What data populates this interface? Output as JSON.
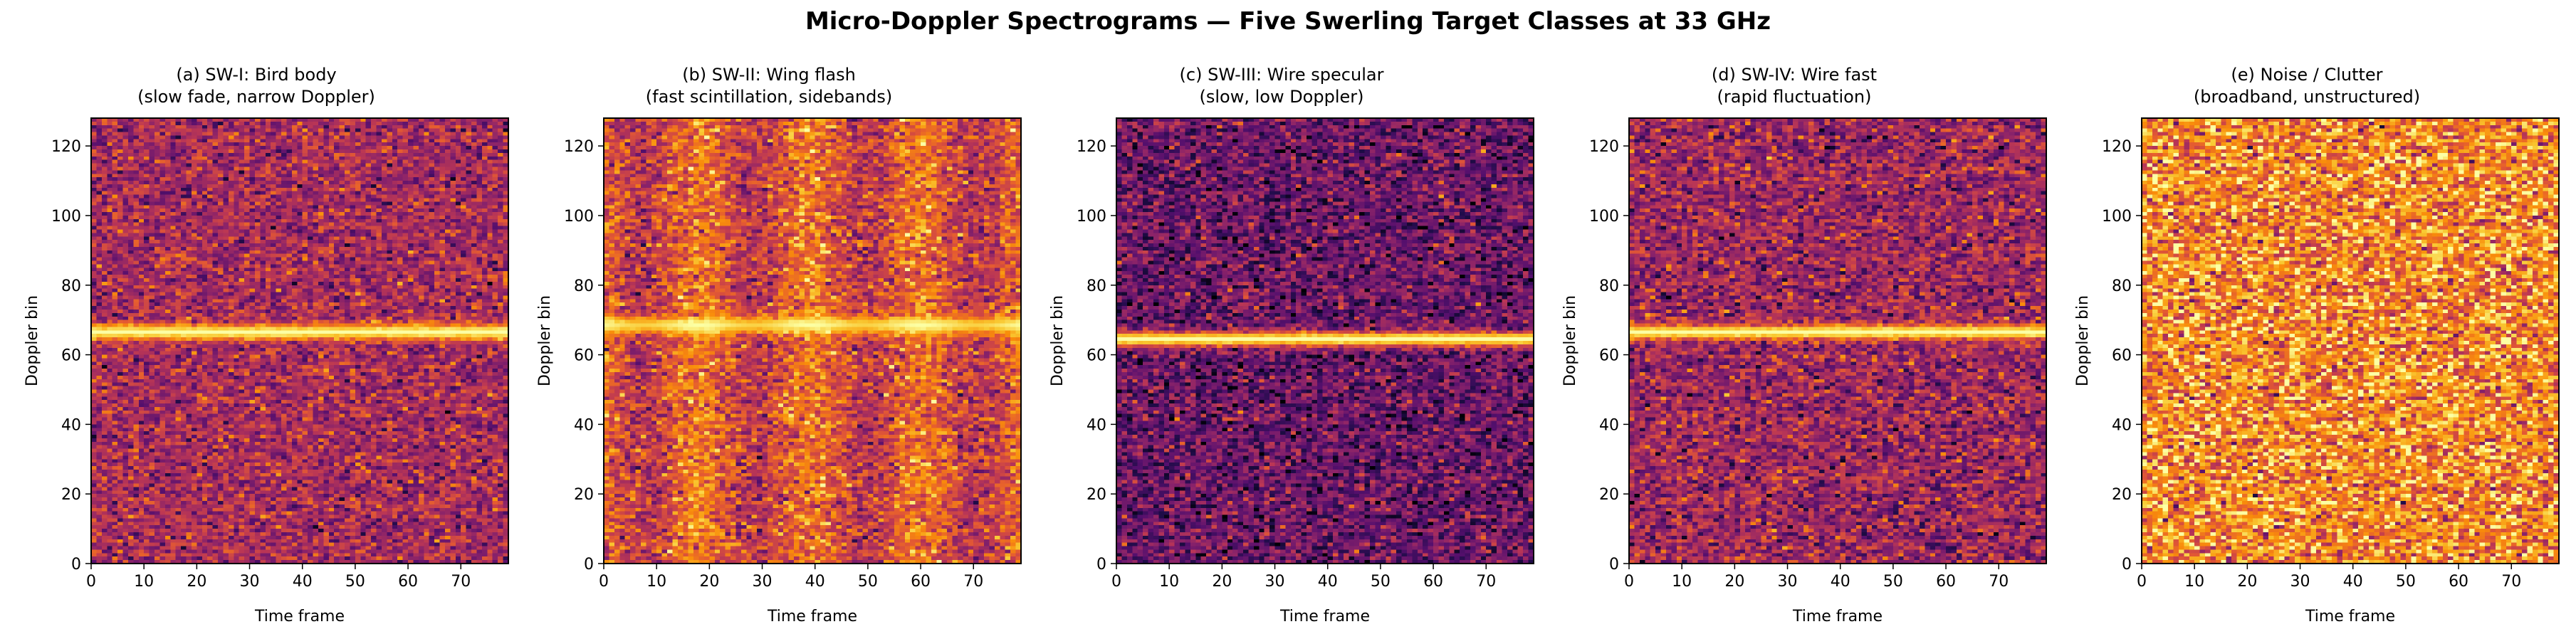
{
  "figure": {
    "title": "Micro-Doppler Spectrograms — Five Swerling Target Classes at 33 GHz"
  },
  "colormap": "inferno",
  "chart_data": [
    {
      "type": "heatmap",
      "title_line1": "(a) SW-I: Bird body",
      "title_line2": "(slow fade, narrow Doppler)",
      "xlabel": "Time frame",
      "ylabel": "Doppler bin",
      "xlim": [
        0,
        79
      ],
      "ylim": [
        0,
        128
      ],
      "xticks": [
        0,
        10,
        20,
        30,
        40,
        50,
        60,
        70
      ],
      "yticks": [
        0,
        20,
        40,
        60,
        80,
        100,
        120
      ],
      "grid": false,
      "background_level": 0.45,
      "noise_amplitude": 0.12,
      "line_center_bin": 66.5,
      "line_width_bins": 1.6,
      "line_level": 1.0,
      "temporal_modulation": "none"
    },
    {
      "type": "heatmap",
      "title_line1": "(b) SW-II: Wing flash",
      "title_line2": "(fast scintillation, sidebands)",
      "xlabel": "Time frame",
      "ylabel": "Doppler bin",
      "xlim": [
        0,
        79
      ],
      "ylim": [
        0,
        128
      ],
      "xticks": [
        0,
        10,
        20,
        30,
        40,
        50,
        60,
        70
      ],
      "yticks": [
        0,
        20,
        40,
        60,
        80,
        100,
        120
      ],
      "grid": false,
      "background_level": 0.55,
      "noise_amplitude": 0.12,
      "line_center_bin": 68.5,
      "line_width_bins": 1.8,
      "line_level": 1.0,
      "temporal_modulation": "periodic flashes, period ≈ 21 frames"
    },
    {
      "type": "heatmap",
      "title_line1": "(c) SW-III: Wire specular",
      "title_line2": "(slow, low Doppler)",
      "xlabel": "Time frame",
      "ylabel": "Doppler bin",
      "xlim": [
        0,
        79
      ],
      "ylim": [
        0,
        128
      ],
      "xticks": [
        0,
        10,
        20,
        30,
        40,
        50,
        60,
        70
      ],
      "yticks": [
        0,
        20,
        40,
        60,
        80,
        100,
        120
      ],
      "grid": false,
      "background_level": 0.3,
      "noise_amplitude": 0.13,
      "line_center_bin": 64.5,
      "line_width_bins": 1.5,
      "line_level": 1.0,
      "temporal_modulation": "none"
    },
    {
      "type": "heatmap",
      "title_line1": "(d) SW-IV: Wire fast",
      "title_line2": "(rapid fluctuation)",
      "xlabel": "Time frame",
      "ylabel": "Doppler bin",
      "xlim": [
        0,
        79
      ],
      "ylim": [
        0,
        128
      ],
      "xticks": [
        0,
        10,
        20,
        30,
        40,
        50,
        60,
        70
      ],
      "yticks": [
        0,
        20,
        40,
        60,
        80,
        100,
        120
      ],
      "grid": false,
      "background_level": 0.42,
      "noise_amplitude": 0.13,
      "line_center_bin": 66.5,
      "line_width_bins": 1.5,
      "line_level": 1.0,
      "temporal_modulation": "none"
    },
    {
      "type": "heatmap",
      "title_line1": "(e) Noise / Clutter",
      "title_line2": "(broadband, unstructured)",
      "xlabel": "Time frame",
      "ylabel": "Doppler bin",
      "xlim": [
        0,
        79
      ],
      "ylim": [
        0,
        128
      ],
      "xticks": [
        0,
        10,
        20,
        30,
        40,
        50,
        60,
        70
      ],
      "yticks": [
        0,
        20,
        40,
        60,
        80,
        100,
        120
      ],
      "grid": false,
      "background_level": 0.74,
      "noise_amplitude": 0.17,
      "line_center_bin": null,
      "line_width_bins": 0,
      "line_level": 0,
      "temporal_modulation": "none"
    }
  ]
}
